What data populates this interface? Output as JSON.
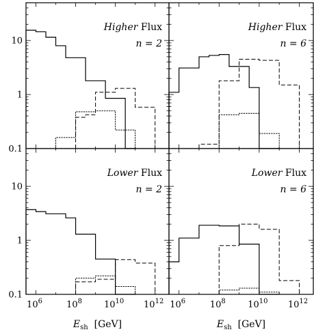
{
  "chart_data": {
    "type": "histogram-grid",
    "x_scale": "log",
    "y_scale": "log",
    "xlim_log10": [
      5.5,
      12.7
    ],
    "ylim": [
      0.1,
      50
    ],
    "x_ticks": [
      {
        "exp": 6,
        "base": "10",
        "sup": "6"
      },
      {
        "exp": 8,
        "base": "10",
        "sup": "8"
      },
      {
        "exp": 10,
        "base": "10",
        "sup": "10"
      },
      {
        "exp": 12,
        "base": "10",
        "sup": "12"
      }
    ],
    "y_ticks": [
      {
        "value": 0.1,
        "label": "0.1"
      },
      {
        "value": 1,
        "label": "1"
      },
      {
        "value": 10,
        "label": "10"
      }
    ],
    "xlabel": {
      "main": "E",
      "sub": "sh",
      "unit": "[GeV]"
    },
    "panels": [
      {
        "flux_word": "Higher",
        "flux_rest": "Flux",
        "n_label": "n = 2",
        "series": [
          {
            "style": "solid",
            "edges": [
              5.5,
              6,
              6.5,
              7,
              7.5,
              8,
              8.5,
              9,
              9.5,
              10,
              10.5,
              11
            ],
            "values": [
              15.5,
              14.5,
              11.5,
              8.0,
              4.8,
              4.8,
              1.8,
              1.8,
              0.85,
              0.85,
              0.1
            ]
          },
          {
            "style": "dashed",
            "edges": [
              8,
              8.5,
              9,
              9.5,
              10,
              10.5,
              11,
              11.5,
              12
            ],
            "values": [
              0.38,
              0.42,
              1.1,
              1.1,
              1.3,
              1.3,
              0.58,
              0.58
            ]
          },
          {
            "style": "dotted",
            "edges": [
              7,
              7.5,
              8,
              8.5,
              9,
              9.5,
              10,
              10.5,
              11
            ],
            "values": [
              0.16,
              0.16,
              0.48,
              0.48,
              0.5,
              0.5,
              0.22,
              0.22
            ]
          }
        ]
      },
      {
        "flux_word": "Higher",
        "flux_rest": "Flux",
        "n_label": "n = 6",
        "series": [
          {
            "style": "solid",
            "edges": [
              5.5,
              6,
              6.5,
              7,
              7.5,
              8,
              8.5,
              9,
              9.5,
              10,
              10.5,
              11
            ],
            "values": [
              1.1,
              3.1,
              3.1,
              5.0,
              5.3,
              5.5,
              3.3,
              3.3,
              1.35,
              0.1,
              0.1
            ]
          },
          {
            "style": "dashed",
            "edges": [
              7,
              7.5,
              8,
              8.5,
              9,
              9.5,
              10,
              10.5,
              11,
              11.5,
              12
            ],
            "values": [
              0.12,
              0.12,
              1.8,
              1.8,
              4.5,
              4.5,
              4.3,
              4.3,
              1.5,
              1.5
            ]
          },
          {
            "style": "dotted",
            "edges": [
              8,
              8.5,
              9,
              9.5,
              10,
              10.5,
              11
            ],
            "values": [
              0.42,
              0.42,
              0.45,
              0.45,
              0.19,
              0.19
            ]
          }
        ]
      },
      {
        "flux_word": "Lower",
        "flux_rest": "Flux",
        "n_label": "n = 2",
        "series": [
          {
            "style": "solid",
            "edges": [
              5.5,
              6,
              6.5,
              7,
              7.5,
              8,
              8.5,
              9,
              9.5,
              10,
              10.5,
              11
            ],
            "values": [
              3.7,
              3.4,
              3.1,
              3.1,
              2.6,
              1.3,
              1.3,
              0.45,
              0.45,
              0.1,
              0.1
            ]
          },
          {
            "style": "dashed",
            "edges": [
              8,
              8.5,
              9,
              9.5,
              10,
              10.5,
              11,
              11.5,
              12
            ],
            "values": [
              0.17,
              0.17,
              0.19,
              0.19,
              0.44,
              0.44,
              0.38,
              0.38
            ]
          },
          {
            "style": "dotted",
            "edges": [
              8,
              8.5,
              9,
              9.5,
              10,
              10.5,
              11
            ],
            "values": [
              0.2,
              0.2,
              0.22,
              0.22,
              0.14,
              0.14
            ]
          }
        ]
      },
      {
        "flux_word": "Lower",
        "flux_rest": "Flux",
        "n_label": "n = 6",
        "series": [
          {
            "style": "solid",
            "edges": [
              5.5,
              6,
              6.5,
              7,
              7.5,
              8,
              8.5,
              9,
              9.5,
              10,
              10.5,
              11
            ],
            "values": [
              0.4,
              1.1,
              1.1,
              1.9,
              1.9,
              1.85,
              1.85,
              0.85,
              0.85,
              0.1,
              0.1
            ]
          },
          {
            "style": "dashed",
            "edges": [
              8,
              8.5,
              9,
              9.5,
              10,
              10.5,
              11,
              11.5,
              12
            ],
            "values": [
              0.8,
              0.8,
              2.0,
              2.0,
              1.6,
              1.6,
              0.18,
              0.18
            ]
          },
          {
            "style": "dotted",
            "edges": [
              8,
              8.5,
              9,
              9.5,
              10,
              10.5,
              11
            ],
            "values": [
              0.12,
              0.12,
              0.13,
              0.13,
              0.11,
              0.11
            ]
          }
        ]
      }
    ]
  }
}
